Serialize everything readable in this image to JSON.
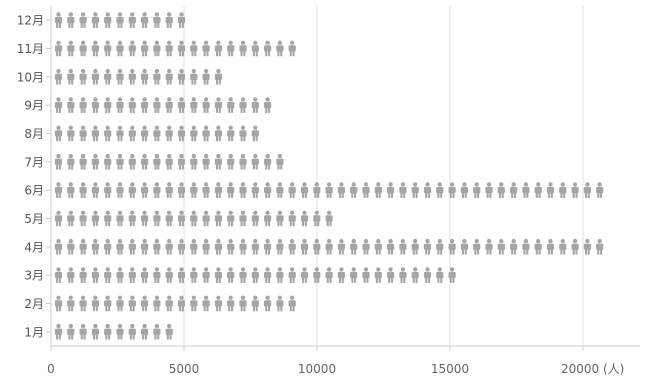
{
  "chart_data": {
    "type": "bar",
    "orientation": "horizontal",
    "mark": "person-icon pictogram",
    "categories": [
      "1月",
      "2月",
      "3月",
      "4月",
      "5月",
      "6月",
      "7月",
      "8月",
      "9月",
      "10月",
      "11月",
      "12月"
    ],
    "values": [
      4500,
      9100,
      15000,
      20900,
      10500,
      20500,
      8700,
      7800,
      8200,
      6500,
      9100,
      5000
    ],
    "xlim": [
      0,
      22000
    ],
    "xticks": [
      0,
      5000,
      10000,
      15000,
      20000
    ],
    "xunit": "(人)",
    "grid": true,
    "legend": "none",
    "colors": {
      "icon": "#a5a5a5",
      "grid": "#e0e0e0",
      "axis": "#cccccc",
      "text": "#666666"
    }
  }
}
